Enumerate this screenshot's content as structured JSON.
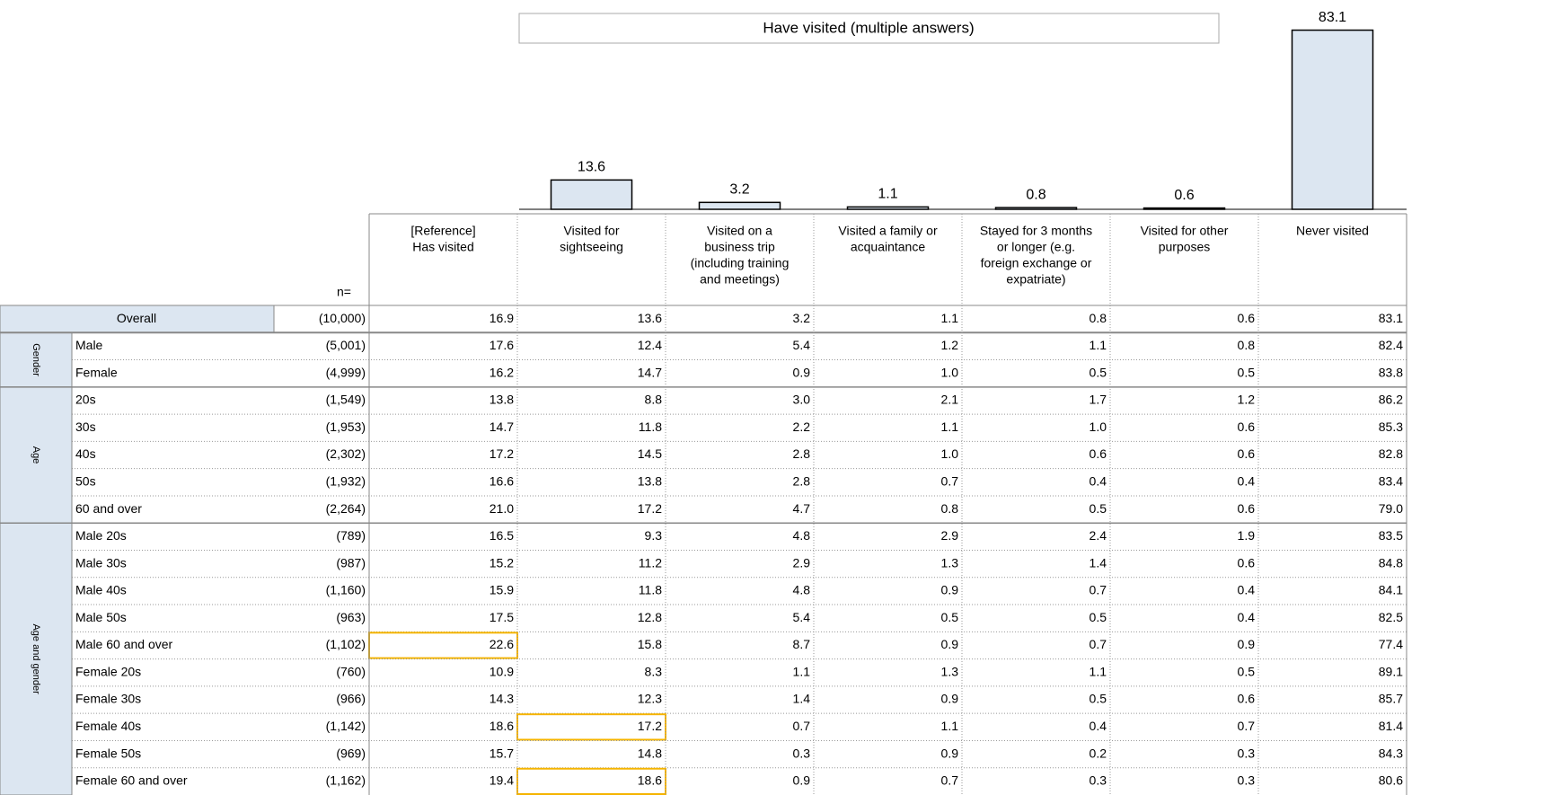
{
  "header": {
    "title": "Have visited (multiple answers)",
    "n_label": "n=",
    "columns": [
      [
        "[Reference]",
        "Has visited"
      ],
      [
        "Visited for",
        "sightseeing"
      ],
      [
        "Visited on a",
        "business trip",
        "(including training",
        "and meetings)"
      ],
      [
        "Visited a family or",
        "acquaintance"
      ],
      [
        "Stayed for 3 months",
        "or longer (e.g.",
        "foreign exchange or",
        "expatriate)"
      ],
      [
        "Visited for other",
        "purposes"
      ],
      [
        "Never visited"
      ]
    ]
  },
  "table": {
    "overall": {
      "label": "Overall",
      "n": "(10,000)",
      "values": [
        "16.9",
        "13.6",
        "3.2",
        "1.1",
        "0.8",
        "0.6",
        "83.1"
      ]
    },
    "groups": [
      {
        "label": "Gender",
        "rows": [
          {
            "label": "Male",
            "n": "(5,001)",
            "values": [
              "17.6",
              "12.4",
              "5.4",
              "1.2",
              "1.1",
              "0.8",
              "82.4"
            ]
          },
          {
            "label": "Female",
            "n": "(4,999)",
            "values": [
              "16.2",
              "14.7",
              "0.9",
              "1.0",
              "0.5",
              "0.5",
              "83.8"
            ]
          }
        ]
      },
      {
        "label": "Age",
        "rows": [
          {
            "label": "20s",
            "n": "(1,549)",
            "values": [
              "13.8",
              "8.8",
              "3.0",
              "2.1",
              "1.7",
              "1.2",
              "86.2"
            ]
          },
          {
            "label": "30s",
            "n": "(1,953)",
            "values": [
              "14.7",
              "11.8",
              "2.2",
              "1.1",
              "1.0",
              "0.6",
              "85.3"
            ]
          },
          {
            "label": "40s",
            "n": "(2,302)",
            "values": [
              "17.2",
              "14.5",
              "2.8",
              "1.0",
              "0.6",
              "0.6",
              "82.8"
            ]
          },
          {
            "label": "50s",
            "n": "(1,932)",
            "values": [
              "16.6",
              "13.8",
              "2.8",
              "0.7",
              "0.4",
              "0.4",
              "83.4"
            ]
          },
          {
            "label": "60 and over",
            "n": "(2,264)",
            "values": [
              "21.0",
              "17.2",
              "4.7",
              "0.8",
              "0.5",
              "0.6",
              "79.0"
            ]
          }
        ]
      },
      {
        "label": "Age and gender",
        "rows": [
          {
            "label": "Male 20s",
            "n": "(789)",
            "values": [
              "16.5",
              "9.3",
              "4.8",
              "2.9",
              "2.4",
              "1.9",
              "83.5"
            ]
          },
          {
            "label": "Male 30s",
            "n": "(987)",
            "values": [
              "15.2",
              "11.2",
              "2.9",
              "1.3",
              "1.4",
              "0.6",
              "84.8"
            ]
          },
          {
            "label": "Male 40s",
            "n": "(1,160)",
            "values": [
              "15.9",
              "11.8",
              "4.8",
              "0.9",
              "0.7",
              "0.4",
              "84.1"
            ]
          },
          {
            "label": "Male 50s",
            "n": "(963)",
            "values": [
              "17.5",
              "12.8",
              "5.4",
              "0.5",
              "0.5",
              "0.4",
              "82.5"
            ]
          },
          {
            "label": "Male 60 and over",
            "n": "(1,102)",
            "values": [
              "22.6",
              "15.8",
              "8.7",
              "0.9",
              "0.7",
              "0.9",
              "77.4"
            ]
          },
          {
            "label": "Female 20s",
            "n": "(760)",
            "values": [
              "10.9",
              "8.3",
              "1.1",
              "1.3",
              "1.1",
              "0.5",
              "89.1"
            ]
          },
          {
            "label": "Female 30s",
            "n": "(966)",
            "values": [
              "14.3",
              "12.3",
              "1.4",
              "0.9",
              "0.5",
              "0.6",
              "85.7"
            ]
          },
          {
            "label": "Female 40s",
            "n": "(1,142)",
            "values": [
              "18.6",
              "17.2",
              "0.7",
              "1.1",
              "0.4",
              "0.7",
              "81.4"
            ]
          },
          {
            "label": "Female 50s",
            "n": "(969)",
            "values": [
              "15.7",
              "14.8",
              "0.3",
              "0.9",
              "0.2",
              "0.3",
              "84.3"
            ]
          },
          {
            "label": "Female 60 and over",
            "n": "(1,162)",
            "values": [
              "19.4",
              "18.6",
              "0.9",
              "0.7",
              "0.3",
              "0.3",
              "80.6"
            ]
          }
        ]
      }
    ]
  }
}
